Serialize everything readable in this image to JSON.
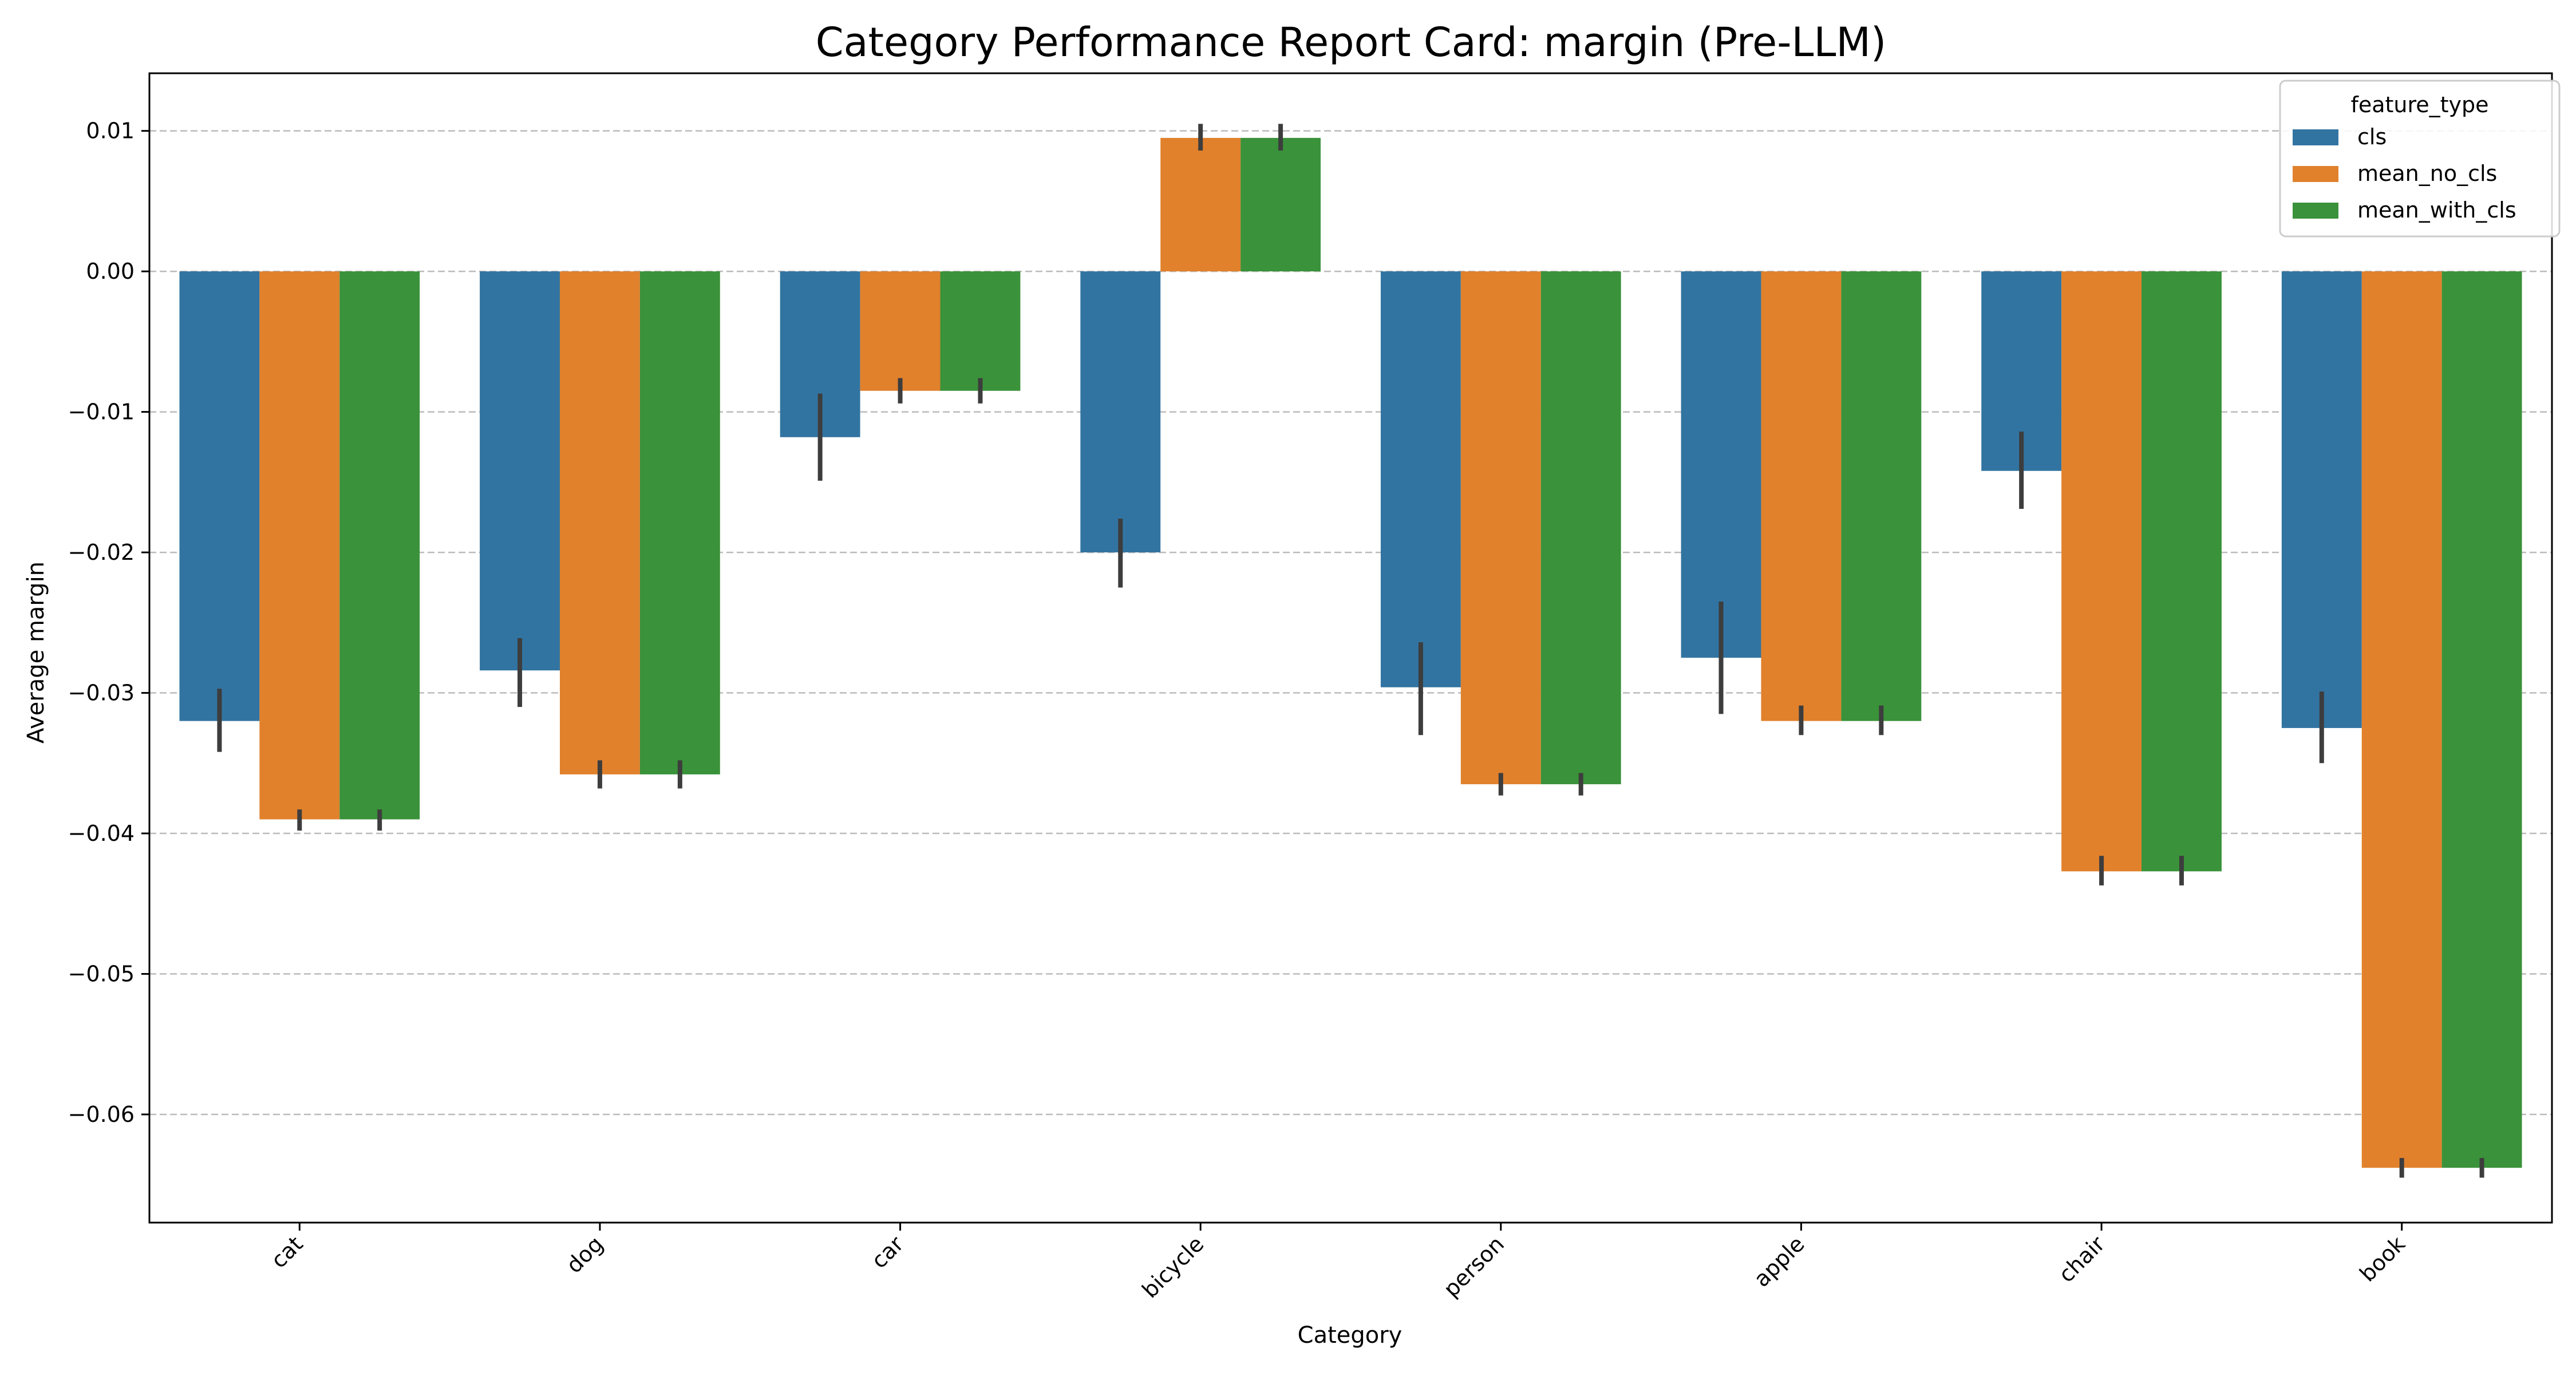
{
  "chart_data": {
    "type": "bar",
    "title": "Category Performance Report Card: margin (Pre-LLM)",
    "xlabel": "Category",
    "ylabel": "Average margin",
    "categories": [
      "cat",
      "dog",
      "car",
      "bicycle",
      "person",
      "apple",
      "chair",
      "book"
    ],
    "series": [
      {
        "name": "cls",
        "color": "#3274a1",
        "values": [
          -0.032,
          -0.0284,
          -0.0118,
          -0.02,
          -0.0296,
          -0.0275,
          -0.0142,
          -0.0325
        ],
        "err_low": [
          -0.0342,
          -0.031,
          -0.0149,
          -0.0225,
          -0.033,
          -0.0315,
          -0.0169,
          -0.035
        ],
        "err_high": [
          -0.0297,
          -0.0261,
          -0.0087,
          -0.0176,
          -0.0264,
          -0.0235,
          -0.0114,
          -0.0299
        ]
      },
      {
        "name": "mean_no_cls",
        "color": "#e1812c",
        "values": [
          -0.039,
          -0.0358,
          -0.0085,
          0.0095,
          -0.0365,
          -0.032,
          -0.0427,
          -0.0638
        ],
        "err_low": [
          -0.0398,
          -0.0368,
          -0.0094,
          0.0086,
          -0.0373,
          -0.033,
          -0.0437,
          -0.0645
        ],
        "err_high": [
          -0.0383,
          -0.0348,
          -0.0076,
          0.0105,
          -0.0357,
          -0.0309,
          -0.0416,
          -0.0631
        ]
      },
      {
        "name": "mean_with_cls",
        "color": "#3a923a",
        "values": [
          -0.039,
          -0.0358,
          -0.0085,
          0.0095,
          -0.0365,
          -0.032,
          -0.0427,
          -0.0638
        ],
        "err_low": [
          -0.0398,
          -0.0368,
          -0.0094,
          0.0086,
          -0.0373,
          -0.033,
          -0.0437,
          -0.0645
        ],
        "err_high": [
          -0.0383,
          -0.0348,
          -0.0076,
          0.0105,
          -0.0357,
          -0.0309,
          -0.0416,
          -0.0631
        ]
      }
    ],
    "ylim": [
      -0.0677,
      0.0141
    ],
    "yticks": [
      0.01,
      0.0,
      -0.01,
      -0.02,
      -0.03,
      -0.04,
      -0.05,
      -0.06
    ],
    "ytick_labels": [
      "0.01",
      "0.00",
      "−0.01",
      "−0.02",
      "−0.03",
      "−0.04",
      "−0.05",
      "−0.06"
    ],
    "grid": "y-dashed",
    "legend": {
      "title": "feature_type",
      "placement": "top-right"
    },
    "errorbar_color": "#3d3d3d"
  }
}
